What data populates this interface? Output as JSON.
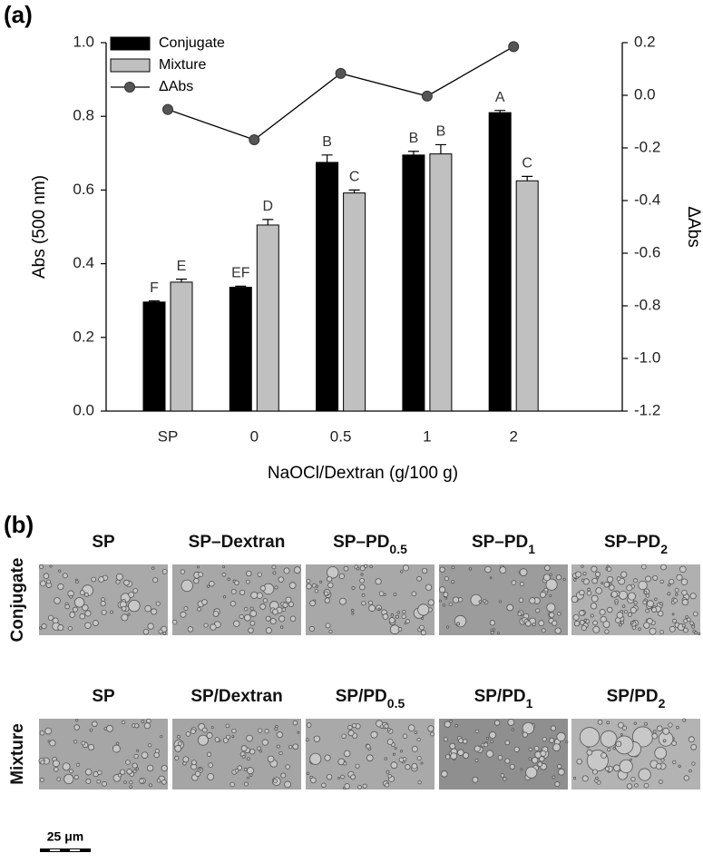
{
  "panel_a_label": "(a)",
  "chart_data": {
    "type": "bar",
    "xlabel": "NaOCl/Dextran (g/100 g)",
    "ylabel": "Abs (500 nm)",
    "y2label": "ΔAbs",
    "categories": [
      "SP",
      "0",
      "0.5",
      "1",
      "2"
    ],
    "series": [
      {
        "name": "Conjugate",
        "color": "#000000",
        "values": [
          0.296,
          0.336,
          0.675,
          0.695,
          0.81
        ],
        "errors": [
          0.003,
          0.003,
          0.02,
          0.01,
          0.006
        ],
        "letters": [
          "F",
          "EF",
          "B",
          "B",
          "A"
        ]
      },
      {
        "name": "Mixture",
        "color": "#c0c0c0",
        "values": [
          0.35,
          0.505,
          0.592,
          0.698,
          0.625
        ],
        "errors": [
          0.008,
          0.015,
          0.008,
          0.025,
          0.012
        ],
        "letters": [
          "E",
          "D",
          "C",
          "B",
          "C"
        ]
      },
      {
        "name": "ΔAbs",
        "type": "line",
        "axis": "y2",
        "color": "#555555",
        "values": [
          -0.054,
          -0.169,
          0.083,
          -0.003,
          0.185
        ]
      }
    ],
    "ylim": [
      0,
      1.0
    ],
    "yticks": [
      {
        "value": 0,
        "label": "0.0"
      },
      0.2,
      0.4,
      0.6,
      0.8,
      {
        "value": 1,
        "label": "1.0"
      }
    ],
    "y2lim": [
      -1.2,
      0.2
    ],
    "y2ticks": [
      -1.2,
      {
        "value": -1,
        "label": "-1.0"
      },
      -0.8,
      -0.6,
      -0.4,
      -0.2,
      {
        "value": 0,
        "label": "0.0"
      },
      0.2
    ],
    "legend": "upper left"
  },
  "panel_b": {
    "label": "(b)",
    "rows": [
      {
        "label": "Conjugate",
        "columns": [
          {
            "main": "SP"
          },
          {
            "main": "SP–Dextran"
          },
          {
            "main": "SP–PD",
            "sub": "0.5"
          },
          {
            "main": "SP–PD",
            "sub": "1"
          },
          {
            "main": "SP–PD",
            "sub": "2"
          }
        ]
      },
      {
        "label": "Mixture",
        "columns": [
          {
            "main": "SP"
          },
          {
            "main": "SP/Dextran"
          },
          {
            "main": "SP/PD",
            "sub": "0.5"
          },
          {
            "main": "SP/PD",
            "sub": "1"
          },
          {
            "main": "SP/PD",
            "sub": "2"
          }
        ]
      }
    ],
    "scale_bar": "25 μm"
  }
}
